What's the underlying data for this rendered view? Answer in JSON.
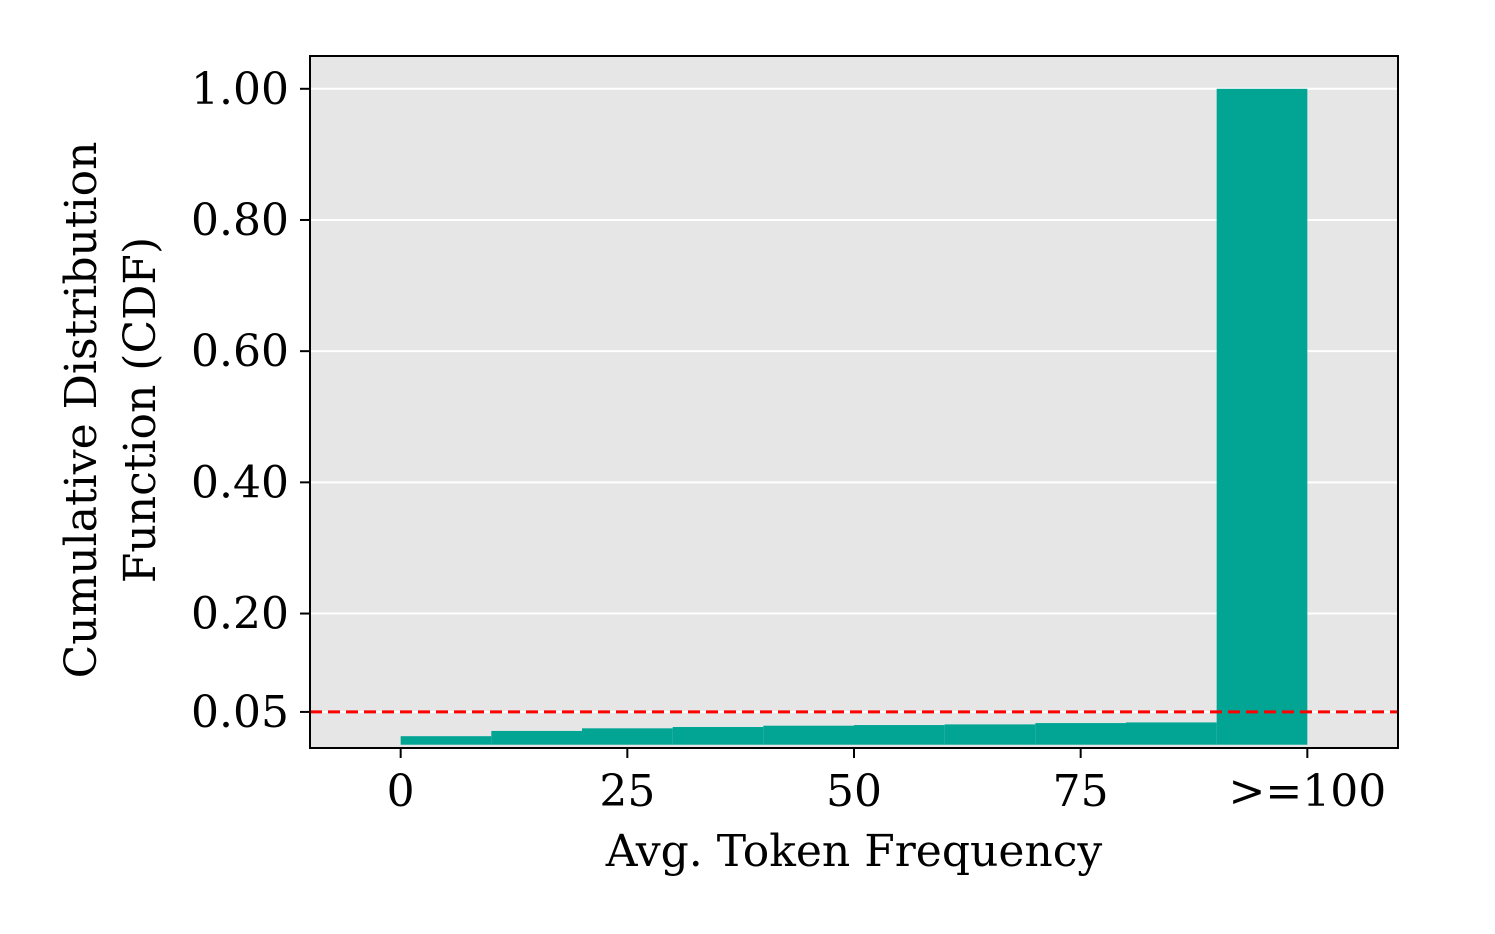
{
  "chart_data": {
    "type": "bar",
    "xlabel": "Avg. Token Frequency",
    "ylabel_lines": [
      "Cumulative Distribution",
      "Function (CDF)"
    ],
    "x_bin_width": 10,
    "xlim": [
      -10,
      110
    ],
    "ylim": [
      -0.005,
      1.05
    ],
    "x_ticks": [
      {
        "value": 0,
        "label": "0"
      },
      {
        "value": 25,
        "label": "25"
      },
      {
        "value": 50,
        "label": "50"
      },
      {
        "value": 75,
        "label": "75"
      },
      {
        "value": 100,
        "label": ">=100"
      }
    ],
    "y_ticks": [
      {
        "value": 0.05,
        "label": "0.05"
      },
      {
        "value": 0.2,
        "label": "0.20"
      },
      {
        "value": 0.4,
        "label": "0.40"
      },
      {
        "value": 0.6,
        "label": "0.60"
      },
      {
        "value": 0.8,
        "label": "0.80"
      },
      {
        "value": 1.0,
        "label": "1.00"
      }
    ],
    "bins": [
      {
        "x_start": 0,
        "cdf": 0.013
      },
      {
        "x_start": 10,
        "cdf": 0.021
      },
      {
        "x_start": 20,
        "cdf": 0.025
      },
      {
        "x_start": 30,
        "cdf": 0.027
      },
      {
        "x_start": 40,
        "cdf": 0.029
      },
      {
        "x_start": 50,
        "cdf": 0.03
      },
      {
        "x_start": 60,
        "cdf": 0.031
      },
      {
        "x_start": 70,
        "cdf": 0.033
      },
      {
        "x_start": 80,
        "cdf": 0.034
      },
      {
        "x_start": 90,
        "cdf": 1.0
      }
    ],
    "threshold_line": {
      "y": 0.05,
      "style": "dashed",
      "color": "#ff0000"
    },
    "grid": {
      "axis": "y",
      "on": true,
      "color": "#ffffff"
    },
    "colors": {
      "bar": "#02a594",
      "plot_background": "#e6e6e6",
      "figure_background": "#ffffff"
    }
  }
}
